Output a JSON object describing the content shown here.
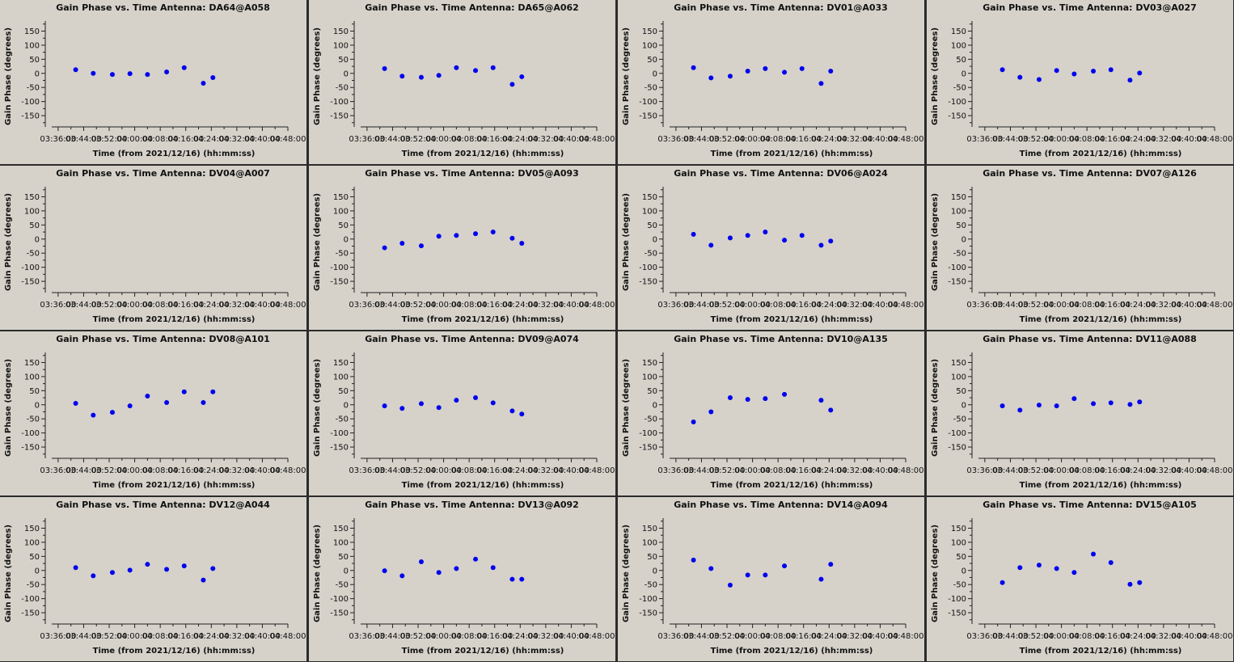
{
  "chart_data": [
    {
      "type": "scatter",
      "title": "Gain Phase vs. Time Antenna: DA64@A058",
      "xlabel": "Time (from 2021/12/16) (hh:mm:ss)",
      "ylabel": "Gain Phase (degrees)",
      "y": [
        13,
        0,
        -4,
        -1,
        -4,
        5,
        20,
        -35,
        -15
      ]
    },
    {
      "type": "scatter",
      "title": "Gain Phase vs. Time Antenna: DA65@A062",
      "xlabel": "Time (from 2021/12/16) (hh:mm:ss)",
      "ylabel": "Gain Phase (degrees)",
      "y": [
        17,
        -10,
        -14,
        -7,
        20,
        10,
        20,
        -39,
        -12
      ]
    },
    {
      "type": "scatter",
      "title": "Gain Phase vs. Time Antenna: DV01@A033",
      "xlabel": "Time (from 2021/12/16) (hh:mm:ss)",
      "ylabel": "Gain Phase (degrees)",
      "y": [
        20,
        -16,
        -10,
        8,
        17,
        4,
        17,
        -36,
        8
      ]
    },
    {
      "type": "scatter",
      "title": "Gain Phase vs. Time Antenna: DV03@A027",
      "xlabel": "Time (from 2021/12/16) (hh:mm:ss)",
      "ylabel": "Gain Phase (degrees)",
      "y": [
        13,
        -14,
        -22,
        10,
        -2,
        8,
        13,
        -24,
        1
      ]
    },
    {
      "type": "scatter",
      "title": "Gain Phase vs. Time Antenna: DV04@A007",
      "xlabel": "Time (from 2021/12/16) (hh:mm:ss)",
      "ylabel": "Gain Phase (degrees)",
      "y": [
        null,
        null,
        null,
        null,
        null,
        null,
        null,
        null,
        null
      ]
    },
    {
      "type": "scatter",
      "title": "Gain Phase vs. Time Antenna: DV05@A093",
      "xlabel": "Time (from 2021/12/16) (hh:mm:ss)",
      "ylabel": "Gain Phase (degrees)",
      "y": [
        -31,
        -15,
        -24,
        10,
        13,
        19,
        25,
        3,
        -15
      ]
    },
    {
      "type": "scatter",
      "title": "Gain Phase vs. Time Antenna: DV06@A024",
      "xlabel": "Time (from 2021/12/16) (hh:mm:ss)",
      "ylabel": "Gain Phase (degrees)",
      "y": [
        17,
        -22,
        4,
        13,
        25,
        -4,
        13,
        -22,
        -7
      ]
    },
    {
      "type": "scatter",
      "title": "Gain Phase vs. Time Antenna: DV07@A126",
      "xlabel": "Time (from 2021/12/16) (hh:mm:ss)",
      "ylabel": "Gain Phase (degrees)",
      "y": [
        null,
        null,
        null,
        null,
        null,
        null,
        null,
        null,
        null
      ]
    },
    {
      "type": "scatter",
      "title": "Gain Phase vs. Time Antenna: DV08@A101",
      "xlabel": "Time (from 2021/12/16) (hh:mm:ss)",
      "ylabel": "Gain Phase (degrees)",
      "y": [
        5,
        -37,
        -27,
        -4,
        31,
        8,
        46,
        8,
        46
      ]
    },
    {
      "type": "scatter",
      "title": "Gain Phase vs. Time Antenna: DV09@A074",
      "xlabel": "Time (from 2021/12/16) (hh:mm:ss)",
      "ylabel": "Gain Phase (degrees)",
      "y": [
        -4,
        -13,
        4,
        -10,
        16,
        25,
        7,
        -22,
        -33
      ]
    },
    {
      "type": "scatter",
      "title": "Gain Phase vs. Time Antenna: DV10@A135",
      "xlabel": "Time (from 2021/12/16) (hh:mm:ss)",
      "ylabel": "Gain Phase (degrees)",
      "y": [
        -61,
        -25,
        25,
        19,
        22,
        37,
        null,
        16,
        -19
      ]
    },
    {
      "type": "scatter",
      "title": "Gain Phase vs. Time Antenna: DV11@A088",
      "xlabel": "Time (from 2021/12/16) (hh:mm:ss)",
      "ylabel": "Gain Phase (degrees)",
      "y": [
        -4,
        -19,
        -1,
        -4,
        22,
        4,
        7,
        1,
        10
      ]
    },
    {
      "type": "scatter",
      "title": "Gain Phase vs. Time Antenna: DV12@A044",
      "xlabel": "Time (from 2021/12/16) (hh:mm:ss)",
      "ylabel": "Gain Phase (degrees)",
      "y": [
        10,
        -19,
        -7,
        1,
        22,
        4,
        16,
        -34,
        7
      ]
    },
    {
      "type": "scatter",
      "title": "Gain Phase vs. Time Antenna: DV13@A092",
      "xlabel": "Time (from 2021/12/16) (hh:mm:ss)",
      "ylabel": "Gain Phase (degrees)",
      "y": [
        -1,
        -19,
        31,
        -7,
        7,
        40,
        10,
        -31,
        -31
      ]
    },
    {
      "type": "scatter",
      "title": "Gain Phase vs. Time Antenna: DV14@A094",
      "xlabel": "Time (from 2021/12/16) (hh:mm:ss)",
      "ylabel": "Gain Phase (degrees)",
      "y": [
        37,
        7,
        -52,
        -16,
        -16,
        16,
        null,
        -31,
        22
      ]
    },
    {
      "type": "scatter",
      "title": "Gain Phase vs. Time Antenna: DV15@A105",
      "xlabel": "Time (from 2021/12/16) (hh:mm:ss)",
      "ylabel": "Gain Phase (degrees)",
      "y": [
        -43,
        10,
        19,
        7,
        -7,
        58,
        28,
        -49,
        -43
      ]
    }
  ],
  "shared": {
    "x_times": [
      "03:41:30",
      "03:47:00",
      "03:53:00",
      "03:58:30",
      "04:04:00",
      "04:10:00",
      "04:15:30",
      "04:21:30",
      "04:24:30"
    ],
    "x_ticks": [
      "03:36:00",
      "03:44:00",
      "03:52:00",
      "04:00:00",
      "04:08:00",
      "04:16:00",
      "04:24:00",
      "04:32:00",
      "04:40:00",
      "04:48:00"
    ],
    "y_ticks": [
      "150",
      "100",
      "50",
      "0",
      "-50",
      "-100",
      "-150"
    ],
    "x_range": [
      "03:34:00",
      "04:48:00"
    ],
    "y_range": [
      -190,
      180
    ],
    "marker_color": "#0000ee",
    "background_color": "#d6d2ca"
  }
}
